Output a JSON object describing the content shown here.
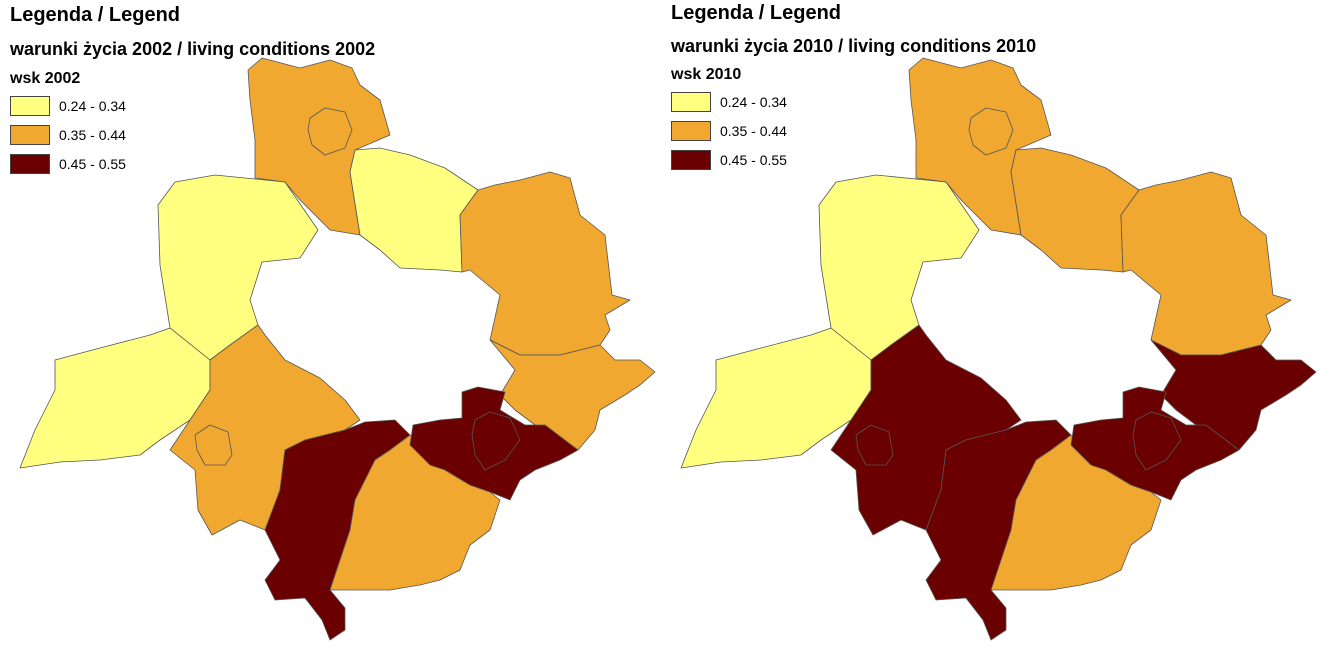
{
  "classes": [
    {
      "range": "0.24 - 0.34",
      "color": "#ffff80"
    },
    {
      "range": "0.35 - 0.44",
      "color": "#f0a830"
    },
    {
      "range": "0.45 - 0.55",
      "color": "#6b0000"
    }
  ],
  "maps": [
    {
      "legend_heading": "Legenda / Legend",
      "title": "warunki życia 2002 / living conditions 2002",
      "index_label": "wsk 2002",
      "district_classes": {
        "north": 1,
        "north-center": 0,
        "north-east": 1,
        "north-west": 0,
        "west": 0,
        "south-west": 1,
        "south-center": 2,
        "south": 1,
        "east": 1,
        "south-east": 2
      }
    },
    {
      "legend_heading": "Legenda / Legend",
      "title": "warunki życia 2010 / living conditions 2010",
      "index_label": "wsk 2010",
      "district_classes": {
        "north": 1,
        "north-center": 1,
        "north-east": 1,
        "north-west": 0,
        "west": 0,
        "south-west": 2,
        "south-center": 2,
        "south": 1,
        "east": 2,
        "south-east": 2
      }
    }
  ]
}
